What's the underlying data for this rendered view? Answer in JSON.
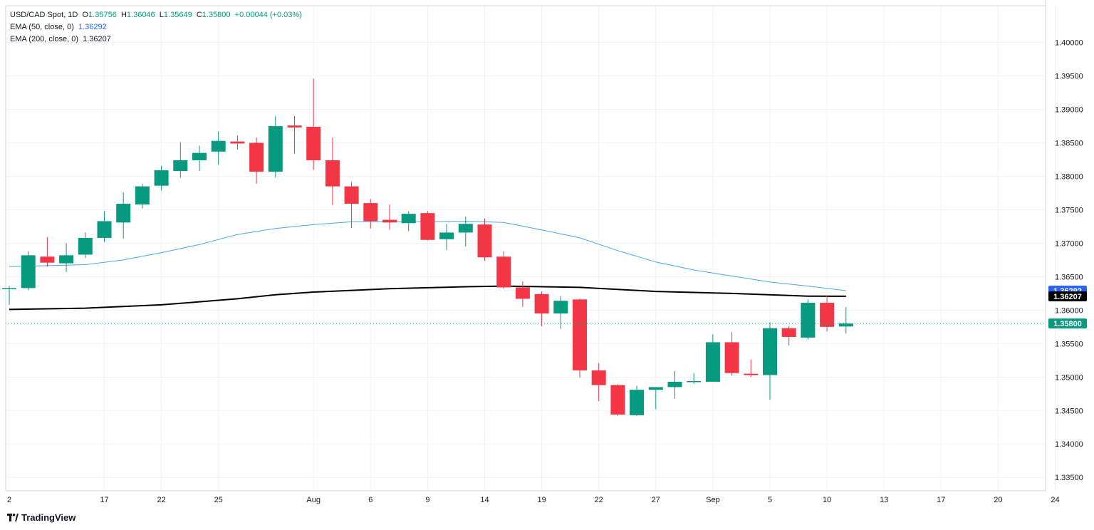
{
  "legend": {
    "symbol": "USD/CAD Spot, 1D",
    "o_label": "O",
    "o": "1.35756",
    "h_label": "H",
    "h": "1.36046",
    "l_label": "L",
    "l": "1.35649",
    "c_label": "C",
    "c": "1.35800",
    "change": "+0.00044 (+0.03%)",
    "ema50_label": "EMA (50, close, 0)",
    "ema50_value": "1.36292",
    "ema200_label": "EMA (200, close, 0)",
    "ema200_value": "1.36207"
  },
  "branding": {
    "name": "TradingView"
  },
  "colors": {
    "up": "#089981",
    "down": "#f23645",
    "ema50": "#4aa3f0",
    "ema200": "#000000",
    "grid": "#f0f3fa",
    "axis_text": "#131722",
    "price_line": "#089981"
  },
  "chart_data": {
    "type": "candlestick",
    "title": "USD/CAD Spot, 1D",
    "ylim": [
      1.333,
      1.4055
    ],
    "y_ticks": [
      "1.33500",
      "1.34000",
      "1.34500",
      "1.35000",
      "1.35500",
      "1.36000",
      "1.36500",
      "1.37000",
      "1.37500",
      "1.38000",
      "1.38500",
      "1.39000",
      "1.39500",
      "1.40000"
    ],
    "x_ticks": [
      {
        "label": "2",
        "day": 0
      },
      {
        "label": "17",
        "day": 5
      },
      {
        "label": "22",
        "day": 8
      },
      {
        "label": "25",
        "day": 11
      },
      {
        "label": "Aug",
        "day": 16
      },
      {
        "label": "6",
        "day": 19
      },
      {
        "label": "9",
        "day": 22
      },
      {
        "label": "14",
        "day": 25
      },
      {
        "label": "19",
        "day": 28
      },
      {
        "label": "22",
        "day": 31
      },
      {
        "label": "27",
        "day": 34
      },
      {
        "label": "Sep",
        "day": 37
      },
      {
        "label": "5",
        "day": 40
      },
      {
        "label": "10",
        "day": 43
      },
      {
        "label": "13",
        "day": 46
      },
      {
        "label": "17",
        "day": 49
      },
      {
        "label": "20",
        "day": 52
      },
      {
        "label": "24",
        "day": 55
      }
    ],
    "candles": [
      {
        "o": 1.3632,
        "h": 1.3636,
        "l": 1.3608,
        "c": 1.3633
      },
      {
        "o": 1.3633,
        "h": 1.3688,
        "l": 1.363,
        "c": 1.3682
      },
      {
        "o": 1.368,
        "h": 1.3709,
        "l": 1.3665,
        "c": 1.3671
      },
      {
        "o": 1.367,
        "h": 1.37,
        "l": 1.3657,
        "c": 1.3682
      },
      {
        "o": 1.3683,
        "h": 1.3716,
        "l": 1.3678,
        "c": 1.3708
      },
      {
        "o": 1.3708,
        "h": 1.3748,
        "l": 1.3702,
        "c": 1.3733
      },
      {
        "o": 1.3731,
        "h": 1.3776,
        "l": 1.3707,
        "c": 1.3759
      },
      {
        "o": 1.3758,
        "h": 1.3789,
        "l": 1.3752,
        "c": 1.3785
      },
      {
        "o": 1.3786,
        "h": 1.3816,
        "l": 1.3779,
        "c": 1.3809
      },
      {
        "o": 1.3808,
        "h": 1.3851,
        "l": 1.3798,
        "c": 1.3824
      },
      {
        "o": 1.3824,
        "h": 1.3846,
        "l": 1.3808,
        "c": 1.3835
      },
      {
        "o": 1.3837,
        "h": 1.3867,
        "l": 1.3817,
        "c": 1.3853
      },
      {
        "o": 1.3852,
        "h": 1.3861,
        "l": 1.384,
        "c": 1.3849
      },
      {
        "o": 1.385,
        "h": 1.3858,
        "l": 1.3789,
        "c": 1.3807
      },
      {
        "o": 1.3807,
        "h": 1.389,
        "l": 1.3798,
        "c": 1.3875
      },
      {
        "o": 1.3876,
        "h": 1.389,
        "l": 1.3834,
        "c": 1.3873
      },
      {
        "o": 1.3874,
        "h": 1.3946,
        "l": 1.381,
        "c": 1.3824
      },
      {
        "o": 1.3824,
        "h": 1.3858,
        "l": 1.3757,
        "c": 1.3785
      },
      {
        "o": 1.3785,
        "h": 1.3792,
        "l": 1.3723,
        "c": 1.3759
      },
      {
        "o": 1.376,
        "h": 1.3766,
        "l": 1.3722,
        "c": 1.3733
      },
      {
        "o": 1.3735,
        "h": 1.3758,
        "l": 1.372,
        "c": 1.3731
      },
      {
        "o": 1.373,
        "h": 1.3748,
        "l": 1.3718,
        "c": 1.3744
      },
      {
        "o": 1.3745,
        "h": 1.3748,
        "l": 1.3704,
        "c": 1.3705
      },
      {
        "o": 1.3706,
        "h": 1.3729,
        "l": 1.369,
        "c": 1.3716
      },
      {
        "o": 1.3716,
        "h": 1.374,
        "l": 1.3695,
        "c": 1.3729
      },
      {
        "o": 1.3728,
        "h": 1.3737,
        "l": 1.3674,
        "c": 1.3679
      },
      {
        "o": 1.368,
        "h": 1.3688,
        "l": 1.3632,
        "c": 1.3634
      },
      {
        "o": 1.3634,
        "h": 1.3643,
        "l": 1.3605,
        "c": 1.3617
      },
      {
        "o": 1.3624,
        "h": 1.3628,
        "l": 1.3576,
        "c": 1.3595
      },
      {
        "o": 1.3595,
        "h": 1.3621,
        "l": 1.3572,
        "c": 1.3614
      },
      {
        "o": 1.3616,
        "h": 1.3617,
        "l": 1.3499,
        "c": 1.351
      },
      {
        "o": 1.351,
        "h": 1.3521,
        "l": 1.3464,
        "c": 1.3488
      },
      {
        "o": 1.3488,
        "h": 1.3489,
        "l": 1.3442,
        "c": 1.3444
      },
      {
        "o": 1.3443,
        "h": 1.3487,
        "l": 1.3442,
        "c": 1.3481
      },
      {
        "o": 1.3481,
        "h": 1.3484,
        "l": 1.3452,
        "c": 1.3485
      },
      {
        "o": 1.3485,
        "h": 1.3509,
        "l": 1.3468,
        "c": 1.3493
      },
      {
        "o": 1.3493,
        "h": 1.3506,
        "l": 1.349,
        "c": 1.3494
      },
      {
        "o": 1.3493,
        "h": 1.3564,
        "l": 1.3493,
        "c": 1.3552
      },
      {
        "o": 1.3552,
        "h": 1.3567,
        "l": 1.3502,
        "c": 1.3506
      },
      {
        "o": 1.3505,
        "h": 1.3526,
        "l": 1.35,
        "c": 1.3503
      },
      {
        "o": 1.3503,
        "h": 1.3582,
        "l": 1.3466,
        "c": 1.3573
      },
      {
        "o": 1.3573,
        "h": 1.3576,
        "l": 1.3547,
        "c": 1.356
      },
      {
        "o": 1.3559,
        "h": 1.3616,
        "l": 1.3556,
        "c": 1.3611
      },
      {
        "o": 1.3611,
        "h": 1.3622,
        "l": 1.3568,
        "c": 1.3575
      },
      {
        "o": 1.35756,
        "h": 1.36046,
        "l": 1.35649,
        "c": 1.358
      }
    ],
    "ema50": [
      {
        "day": 0,
        "v": 1.3665
      },
      {
        "day": 4,
        "v": 1.3668
      },
      {
        "day": 6,
        "v": 1.3675
      },
      {
        "day": 8,
        "v": 1.3686
      },
      {
        "day": 10,
        "v": 1.3698
      },
      {
        "day": 12,
        "v": 1.3713
      },
      {
        "day": 14,
        "v": 1.3722
      },
      {
        "day": 16,
        "v": 1.3728
      },
      {
        "day": 18,
        "v": 1.3732
      },
      {
        "day": 20,
        "v": 1.3732
      },
      {
        "day": 22,
        "v": 1.3732
      },
      {
        "day": 24,
        "v": 1.3733
      },
      {
        "day": 26,
        "v": 1.3731
      },
      {
        "day": 28,
        "v": 1.372
      },
      {
        "day": 30,
        "v": 1.3708
      },
      {
        "day": 32,
        "v": 1.3689
      },
      {
        "day": 34,
        "v": 1.3672
      },
      {
        "day": 36,
        "v": 1.366
      },
      {
        "day": 38,
        "v": 1.3651
      },
      {
        "day": 40,
        "v": 1.3642
      },
      {
        "day": 42,
        "v": 1.3636
      },
      {
        "day": 44,
        "v": 1.36292
      }
    ],
    "ema200": [
      {
        "day": 0,
        "v": 1.3601
      },
      {
        "day": 4,
        "v": 1.3603
      },
      {
        "day": 8,
        "v": 1.3608
      },
      {
        "day": 12,
        "v": 1.3617
      },
      {
        "day": 14,
        "v": 1.3623
      },
      {
        "day": 16,
        "v": 1.3627
      },
      {
        "day": 20,
        "v": 1.3632
      },
      {
        "day": 24,
        "v": 1.3635
      },
      {
        "day": 26,
        "v": 1.3636
      },
      {
        "day": 30,
        "v": 1.3634
      },
      {
        "day": 34,
        "v": 1.3628
      },
      {
        "day": 38,
        "v": 1.3625
      },
      {
        "day": 42,
        "v": 1.3621
      },
      {
        "day": 44,
        "v": 1.36207
      }
    ],
    "price_labels": [
      {
        "label": "1.36292",
        "value": 1.36292,
        "color": "#2962ff"
      },
      {
        "label": "1.36207",
        "value": 1.36207,
        "color": "#000000"
      },
      {
        "label": "1.35800",
        "value": 1.358,
        "color": "#089981"
      }
    ],
    "last_price": 1.358
  }
}
